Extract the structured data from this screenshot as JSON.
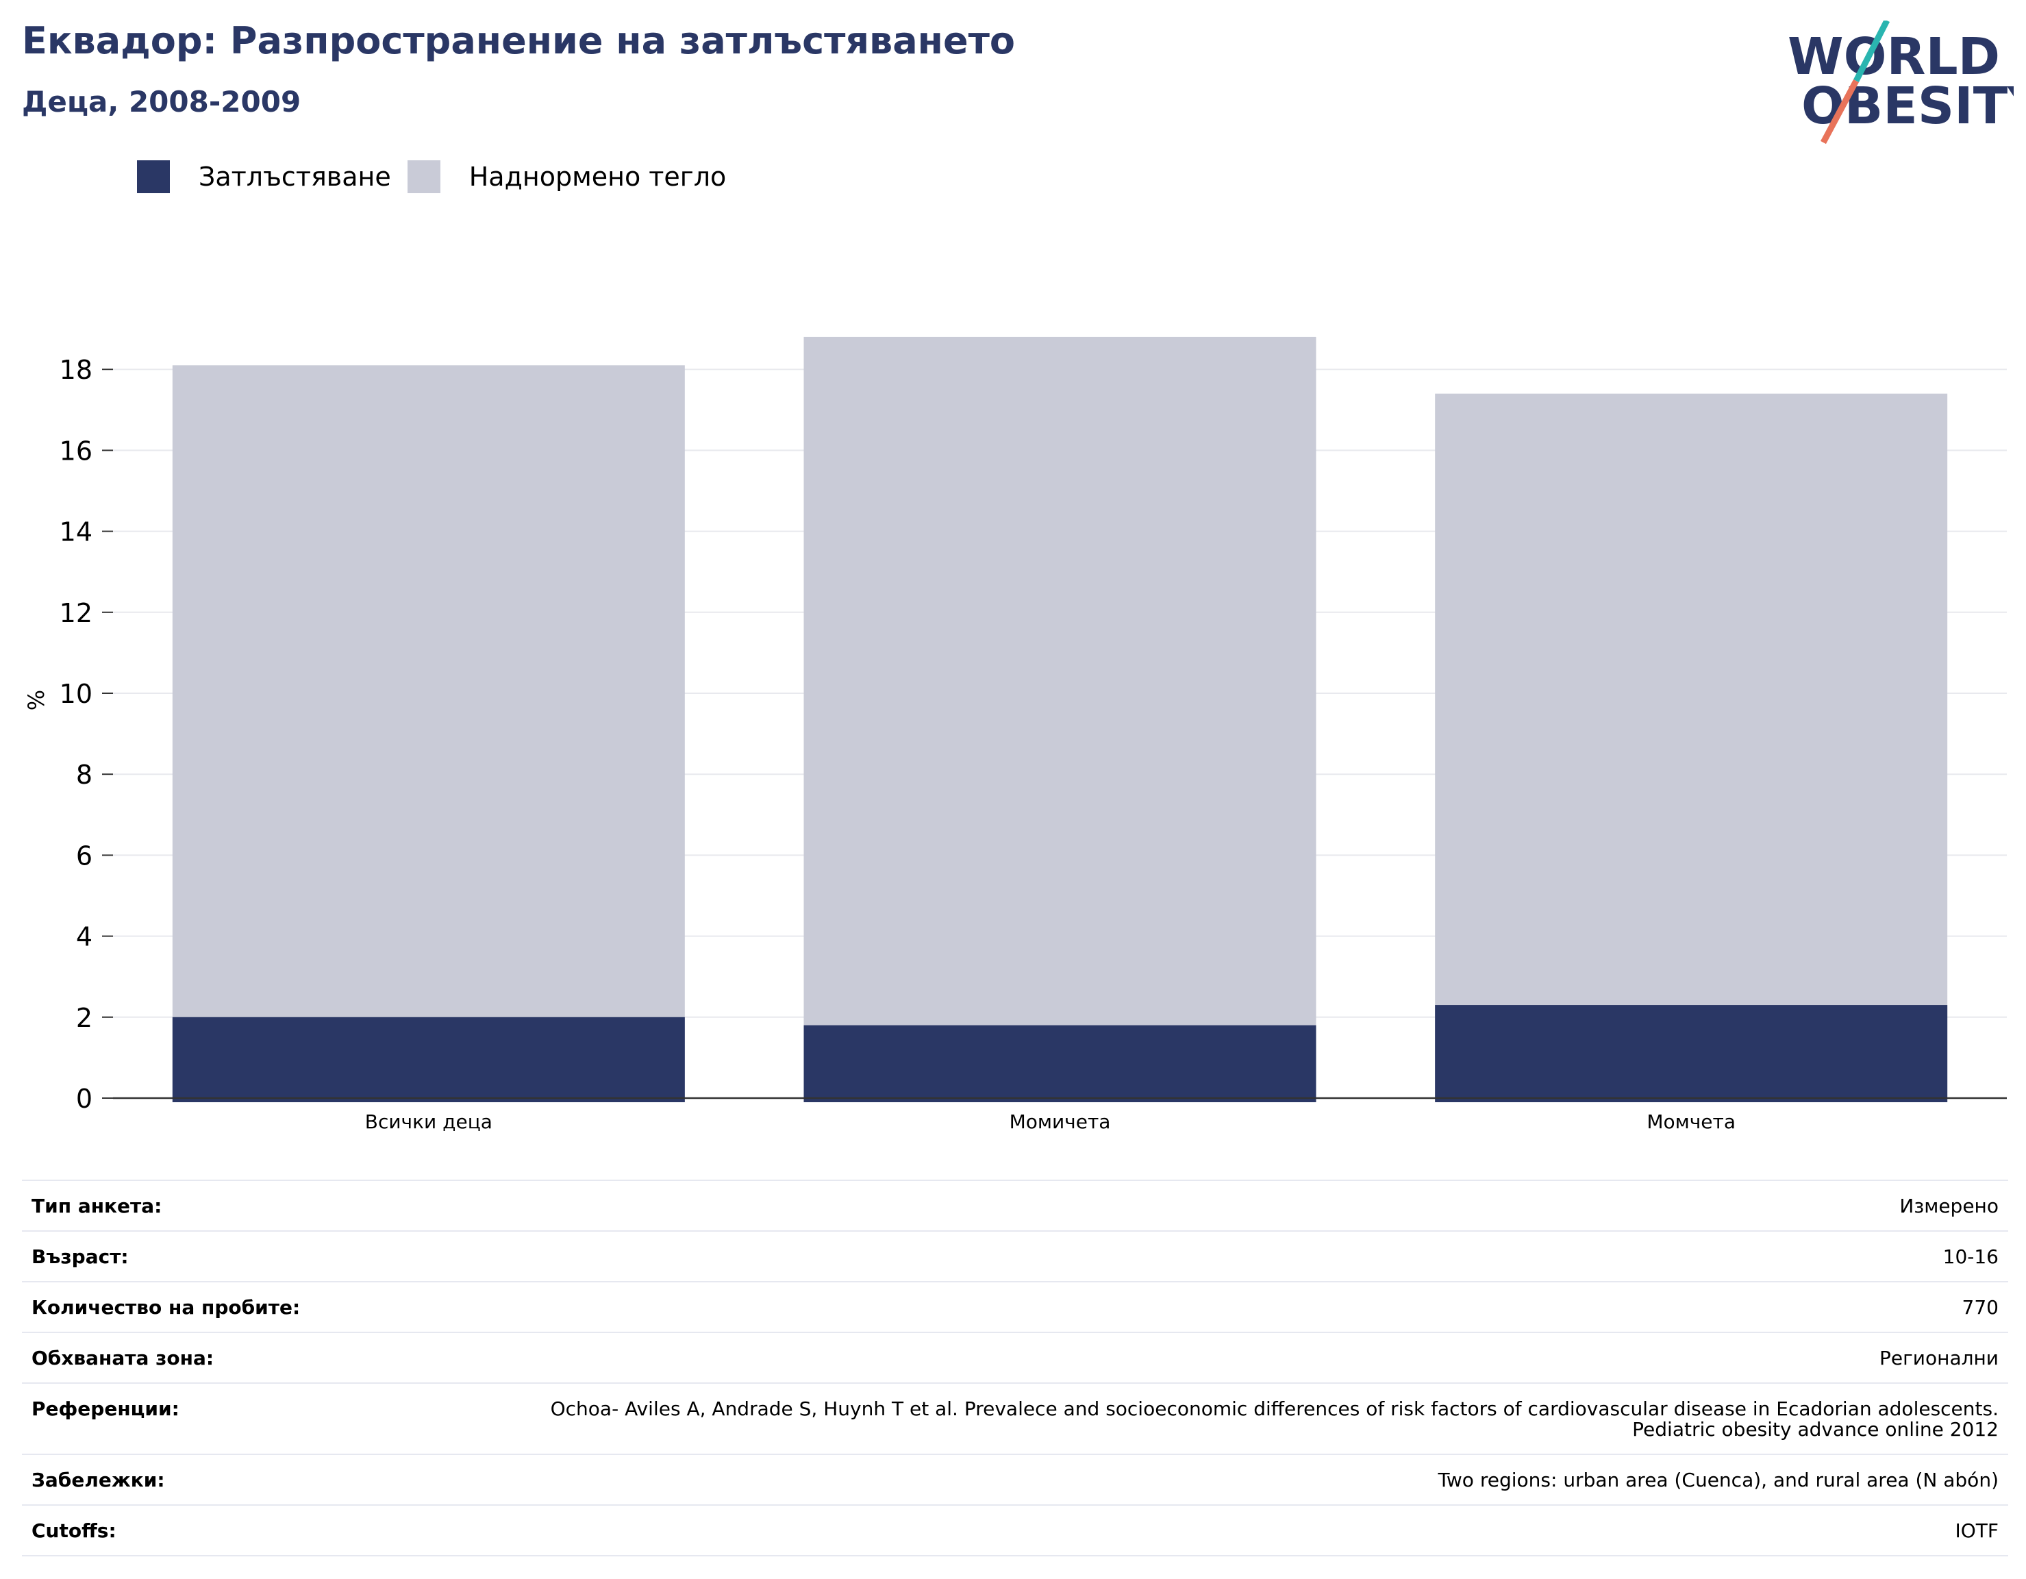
{
  "header": {
    "title": "Еквадор: Разпространение на затлъстяването",
    "subtitle": "Деца, 2008-2009"
  },
  "logo": {
    "line1": "WORLD",
    "line2": "OBESITY",
    "colors": {
      "text": "#2a3765",
      "slash_top": "#2ab5b0",
      "slash_bottom": "#e8735a"
    }
  },
  "chart_data": {
    "type": "bar",
    "stacked": false,
    "overlapped": true,
    "categories": [
      "Всички деца",
      "Момичета",
      "Момчета"
    ],
    "series": [
      {
        "name": "Наднормено тегло",
        "values": [
          18.1,
          18.8,
          17.4
        ],
        "color": "#c9cbd7"
      },
      {
        "name": "Затлъстяване",
        "values": [
          2.0,
          1.8,
          2.3
        ],
        "color": "#2a3765"
      }
    ],
    "legend": [
      {
        "name": "Затлъстяване",
        "color": "#2a3765"
      },
      {
        "name": "Наднормено тегло",
        "color": "#c9cbd7"
      }
    ],
    "legend_position": "top-left",
    "ylabel": "%",
    "xlabel": "",
    "ylim": [
      0,
      19.5
    ],
    "yticks": [
      0,
      2,
      4,
      6,
      8,
      10,
      12,
      14,
      16,
      18
    ],
    "grid": true
  },
  "info": [
    {
      "label": "Тип анкета:",
      "value": "Измерено"
    },
    {
      "label": "Възраст:",
      "value": "10-16"
    },
    {
      "label": "Количество на пробите:",
      "value": "770"
    },
    {
      "label": "Обхваната зона:",
      "value": "Регионални"
    },
    {
      "label": "Референции:",
      "value": "Ochoa- Aviles A, Andrade S, Huynh T et al. Prevalece and socioeconomic differences of risk factors of cardiovascular disease in Ecadorian adolescents. Pediatric obesity advance online 2012"
    },
    {
      "label": "Забележки:",
      "value": "Two regions: urban area (Cuenca), and rural area (N abón)"
    },
    {
      "label": "Cutoffs:",
      "value": "IOTF"
    }
  ]
}
